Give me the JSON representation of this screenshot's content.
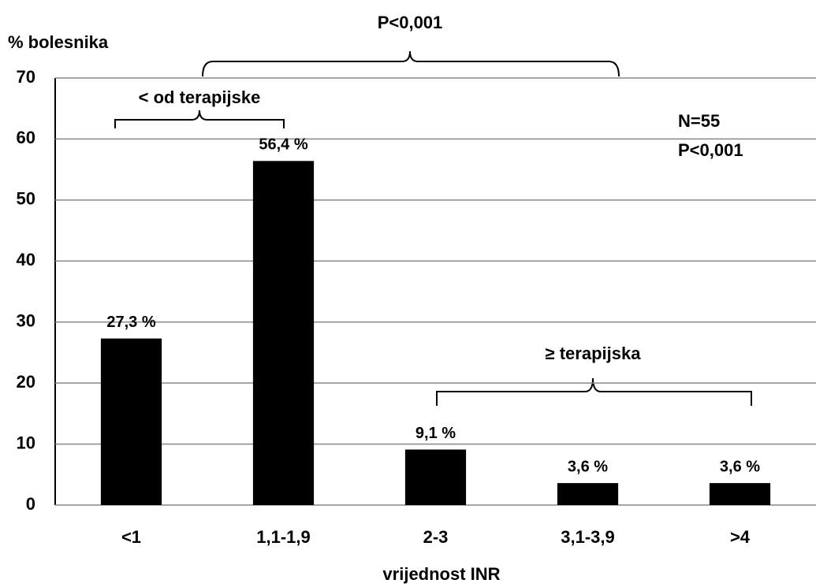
{
  "chart_data": {
    "type": "bar",
    "y_label": "% bolesnika",
    "x_label": "vrijednost INR",
    "categories": [
      "<1",
      "1,1-1,9",
      "2-3",
      "3,1-3,9",
      ">4"
    ],
    "values": [
      27.3,
      56.4,
      9.1,
      3.6,
      3.6
    ],
    "value_labels": [
      "27,3 %",
      "56,4 %",
      "9,1 %",
      "3,6 %",
      "3,6 %"
    ],
    "color": "#000000",
    "ylim": [
      0,
      70
    ],
    "yticks": [
      0,
      10,
      20,
      30,
      40,
      50,
      60,
      70
    ],
    "grid": true,
    "annotations": [
      "P<0,001",
      "< od terapijske",
      "≥ terapijska",
      "N=55",
      "P<0,001"
    ]
  }
}
